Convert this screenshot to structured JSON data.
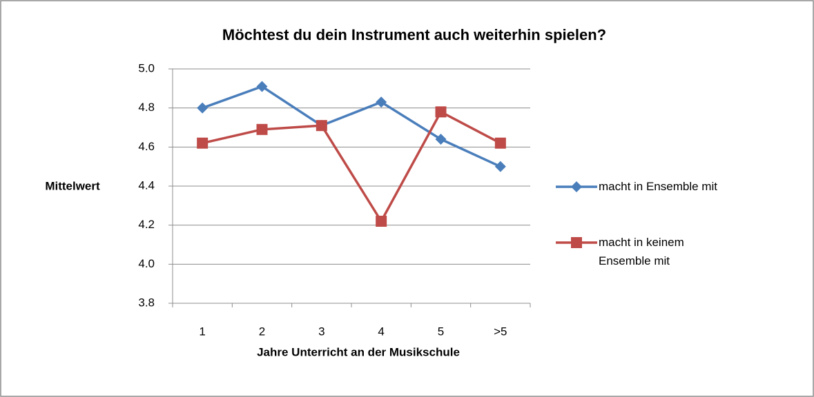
{
  "chart_data": {
    "type": "line",
    "title": "Möchtest du dein Instrument auch weiterhin spielen?",
    "y_label": "Mittelwert",
    "x_label": "Jahre Unterricht an der Musikschule",
    "categories": [
      "1",
      "2",
      "3",
      "4",
      "5",
      ">5"
    ],
    "series": [
      {
        "name": "macht in Ensemble mit",
        "color": "#4a7ebb",
        "marker": "diamond",
        "values": [
          4.8,
          4.91,
          4.71,
          4.83,
          4.64,
          4.5
        ]
      },
      {
        "name": "macht in keinem Ensemble mit",
        "color": "#be4b48",
        "marker": "square",
        "values": [
          4.62,
          4.69,
          4.71,
          4.22,
          4.78,
          4.62
        ]
      }
    ],
    "ylim": [
      3.8,
      5.0
    ],
    "yticks": [
      3.8,
      {
        "value": 4,
        "label": "4.0"
      },
      4.2,
      4.4,
      4.6,
      4.8,
      {
        "value": 5,
        "label": "5.0"
      }
    ],
    "grid": true,
    "legend": "right"
  }
}
